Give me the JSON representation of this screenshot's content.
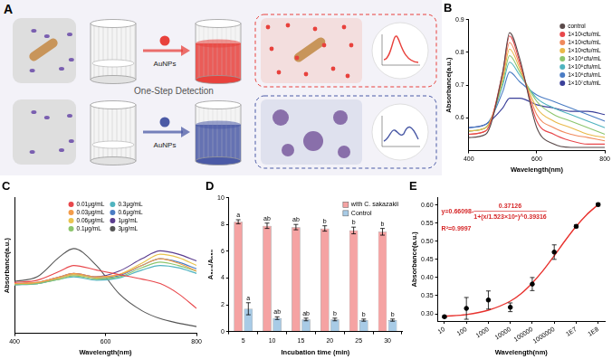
{
  "diagram": {
    "title": "A",
    "caption": "One-Step Detection",
    "rows": [
      {
        "reagent": "AuNPs",
        "color": "#e8413c"
      },
      {
        "reagent": "AuNPs",
        "color": "#4b5aa6"
      }
    ]
  },
  "chart_data": [
    {
      "type": "line",
      "title": "B",
      "x_label": "Wavelength(nm)",
      "y_label": "Absorbance(a.u.)",
      "x": [
        400,
        450,
        500,
        520,
        550,
        600,
        650,
        700,
        750,
        800
      ],
      "xlim": [
        400,
        800
      ],
      "xticks": [
        400,
        600,
        800
      ],
      "ylim": [
        0.5,
        0.9
      ],
      "yticks": [
        0.6,
        0.7,
        0.8,
        0.9
      ],
      "legend": "upper right",
      "series": [
        {
          "name": "control",
          "color": "#5a4a4a",
          "values": [
            0.54,
            0.55,
            0.74,
            0.86,
            0.78,
            0.57,
            0.52,
            0.51,
            0.51,
            0.51
          ]
        },
        {
          "name": "1×10¹cfu/mL",
          "color": "#e8474b",
          "values": [
            0.55,
            0.56,
            0.74,
            0.85,
            0.77,
            0.59,
            0.55,
            0.53,
            0.52,
            0.52
          ]
        },
        {
          "name": "1×10²cfu/mL",
          "color": "#f08a5d",
          "values": [
            0.55,
            0.56,
            0.73,
            0.83,
            0.76,
            0.61,
            0.57,
            0.55,
            0.54,
            0.53
          ]
        },
        {
          "name": "1×10³cfu/mL",
          "color": "#e9b949",
          "values": [
            0.56,
            0.57,
            0.72,
            0.81,
            0.75,
            0.63,
            0.59,
            0.57,
            0.55,
            0.54
          ]
        },
        {
          "name": "1×10⁴cfu/mL",
          "color": "#8cc56d",
          "values": [
            0.56,
            0.57,
            0.71,
            0.79,
            0.74,
            0.65,
            0.61,
            0.59,
            0.57,
            0.55
          ]
        },
        {
          "name": "1×10⁵cfu/mL",
          "color": "#4fb3bf",
          "values": [
            0.56,
            0.57,
            0.7,
            0.77,
            0.73,
            0.66,
            0.63,
            0.61,
            0.59,
            0.57
          ]
        },
        {
          "name": "1×10⁶cfu/mL",
          "color": "#4a7cc4",
          "values": [
            0.57,
            0.58,
            0.68,
            0.74,
            0.71,
            0.67,
            0.65,
            0.63,
            0.61,
            0.59
          ]
        },
        {
          "name": "1×10⁷cfu/mL",
          "color": "#3a3f99",
          "values": [
            0.57,
            0.58,
            0.63,
            0.66,
            0.66,
            0.64,
            0.63,
            0.62,
            0.62,
            0.61
          ]
        }
      ]
    },
    {
      "type": "line",
      "title": "C",
      "x_label": "Wavelength(nm)",
      "y_label": "Absorbance(a.u.)",
      "x": [
        400,
        450,
        500,
        530,
        580,
        630,
        680,
        720,
        760,
        800
      ],
      "xlim": [
        400,
        800
      ],
      "xticks": [
        400,
        600,
        800
      ],
      "ylim": [
        0,
        1.2
      ],
      "tick_labels": "x",
      "legend": "upper center",
      "series": [
        {
          "name": "0.01μg/mL",
          "color": "#e8474b",
          "values": [
            0.45,
            0.47,
            0.55,
            0.6,
            0.56,
            0.52,
            0.48,
            0.44,
            0.35,
            0.22
          ]
        },
        {
          "name": "0.03μg/mL",
          "color": "#f39c4a",
          "values": [
            0.44,
            0.45,
            0.5,
            0.53,
            0.5,
            0.52,
            0.6,
            0.66,
            0.62,
            0.55
          ]
        },
        {
          "name": "0.06μg/mL",
          "color": "#e9c44f",
          "values": [
            0.44,
            0.45,
            0.49,
            0.52,
            0.49,
            0.52,
            0.62,
            0.7,
            0.67,
            0.6
          ]
        },
        {
          "name": "0.1μg/mL",
          "color": "#8cc56d",
          "values": [
            0.43,
            0.44,
            0.48,
            0.51,
            0.48,
            0.5,
            0.58,
            0.63,
            0.6,
            0.55
          ]
        },
        {
          "name": "0.3μg/mL",
          "color": "#4fb3bf",
          "values": [
            0.43,
            0.44,
            0.48,
            0.5,
            0.47,
            0.49,
            0.56,
            0.6,
            0.58,
            0.53
          ]
        },
        {
          "name": "0.6μg/mL",
          "color": "#4a7cc4",
          "values": [
            0.43,
            0.44,
            0.49,
            0.52,
            0.49,
            0.51,
            0.6,
            0.66,
            0.63,
            0.57
          ]
        },
        {
          "name": "1μg/mL",
          "color": "#5b3d8f",
          "values": [
            0.44,
            0.45,
            0.5,
            0.53,
            0.5,
            0.55,
            0.66,
            0.73,
            0.7,
            0.64
          ]
        },
        {
          "name": "3μg/mL",
          "color": "#555555",
          "values": [
            0.46,
            0.5,
            0.68,
            0.75,
            0.6,
            0.35,
            0.2,
            0.13,
            0.09,
            0.06
          ]
        }
      ]
    },
    {
      "type": "bar",
      "title": "D",
      "x_label": "Incubation time (min)",
      "y_label": "A₅₂₀/A₆₅₀",
      "categories": [
        "5",
        "10",
        "15",
        "20",
        "25",
        "30"
      ],
      "ylim": [
        0,
        10
      ],
      "yticks": [
        0,
        2,
        4,
        6,
        8,
        10
      ],
      "legend": "upper right",
      "series": [
        {
          "name": "with C. sakazakii",
          "color": "#f5a3a3",
          "values": [
            8.2,
            7.9,
            7.8,
            7.7,
            7.55,
            7.45
          ],
          "errors": [
            0.15,
            0.2,
            0.2,
            0.2,
            0.25,
            0.25
          ],
          "letters": [
            "a",
            "ab",
            "ab",
            "b",
            "b",
            "b"
          ]
        },
        {
          "name": "Control",
          "color": "#a8cbe6",
          "values": [
            1.7,
            1.0,
            0.9,
            0.9,
            0.85,
            0.85
          ],
          "errors": [
            0.45,
            0.1,
            0.1,
            0.1,
            0.08,
            0.08
          ],
          "letters": [
            "a",
            "ab",
            "ab",
            "b",
            "b",
            "b"
          ]
        }
      ]
    },
    {
      "type": "scatter",
      "title": "E",
      "x_label": "Wavelength(nm)",
      "y_label": "Absorbance(a.u.)",
      "log": "x",
      "xlim": [
        5,
        200000000
      ],
      "xticks": [
        10,
        100,
        1000,
        10000,
        100000,
        1000000,
        {
          "value": 10000000,
          "label": "1E7"
        },
        {
          "value": 100000000,
          "label": "1E8"
        }
      ],
      "ylim": [
        0.28,
        0.62
      ],
      "yticks": [
        {
          "value": 0.3,
          "label": "0.30"
        },
        0.35,
        {
          "value": 0.4,
          "label": "0.40"
        },
        0.45,
        {
          "value": 0.5,
          "label": "0.50"
        },
        0.55,
        {
          "value": 0.6,
          "label": "0.60"
        }
      ],
      "annotations": [
        "y=0.66098-",
        "0.37126",
        "1+(x/1.523×10⁶)^0.39316",
        "R²=0.9997"
      ],
      "series": [
        {
          "type": "scatter",
          "color": "#000000",
          "x": [
            10,
            100,
            1000,
            10000,
            100000,
            1000000,
            10000000,
            100000000
          ],
          "values": [
            0.292,
            0.315,
            0.338,
            0.318,
            0.382,
            0.47,
            0.541,
            0.601
          ],
          "errors": [
            0.003,
            0.03,
            0.025,
            0.012,
            0.018,
            0.02,
            0.004,
            0.004
          ]
        },
        {
          "type": "line",
          "color": "#e8322e",
          "x": [
            10,
            100,
            1000,
            10000,
            30000,
            100000,
            300000,
            1000000,
            3000000,
            10000000,
            30000000,
            100000000
          ],
          "values": [
            0.293,
            0.298,
            0.31,
            0.335,
            0.355,
            0.385,
            0.418,
            0.46,
            0.5,
            0.541,
            0.573,
            0.601
          ]
        }
      ]
    }
  ]
}
